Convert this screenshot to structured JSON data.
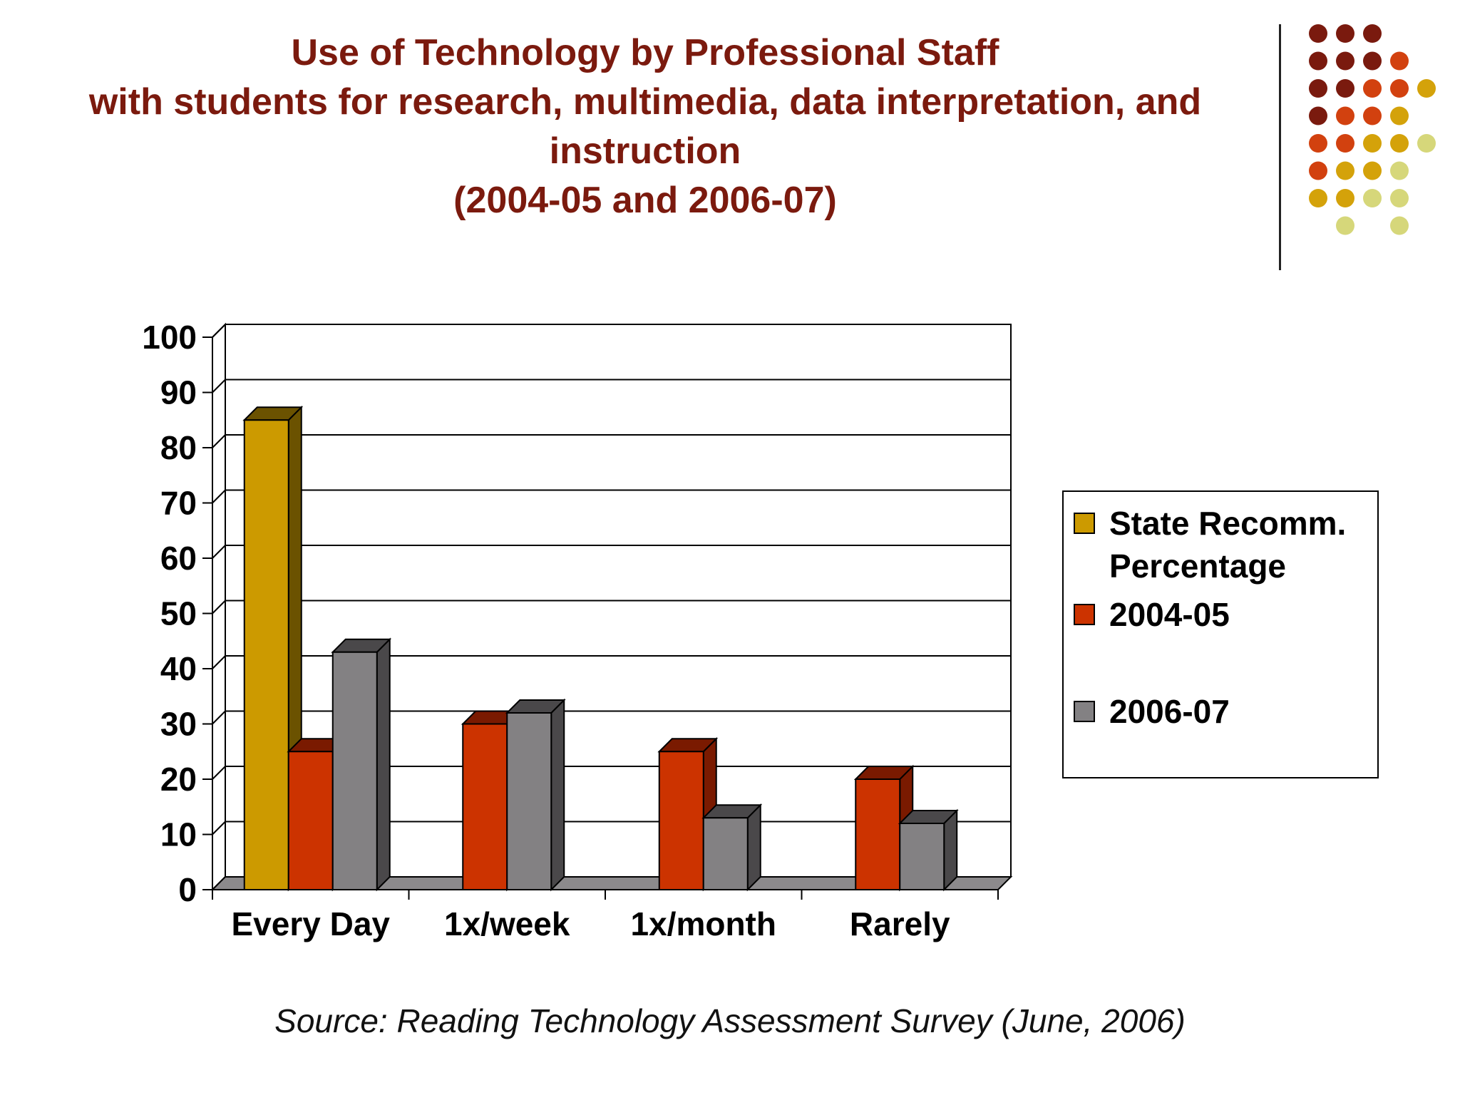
{
  "title_lines": [
    "Use of Technology by Professional Staff",
    "with students for research, multimedia, data interpretation, and",
    "instruction",
    "(2004-05 and 2006-07)"
  ],
  "source": "Source:  Reading Technology Assessment Survey (June, 2006)",
  "decoration_colors": [
    "#7a1a0e",
    "#d2410f",
    "#d4a20a",
    "#d6d77a"
  ],
  "chart_data": {
    "type": "bar",
    "categories": [
      "Every Day",
      "1x/week",
      "1x/month",
      "Rarely"
    ],
    "series": [
      {
        "name": "State Recomm. Percentage",
        "values": [
          85,
          null,
          null,
          null
        ],
        "color": "#cc9a00",
        "side_color": "#6b5200"
      },
      {
        "name": "2004-05",
        "values": [
          25,
          30,
          25,
          20
        ],
        "color": "#cc3300",
        "side_color": "#7a1a00"
      },
      {
        "name": "2006-07",
        "values": [
          43,
          32,
          13,
          12
        ],
        "color": "#838183",
        "side_color": "#4a484a"
      }
    ],
    "legend_lines": [
      [
        "State Recomm.",
        "Percentage"
      ],
      [
        "2004-05"
      ],
      [
        "2006-07"
      ]
    ],
    "ylim": [
      0,
      100
    ],
    "yticks": [
      0,
      10,
      20,
      30,
      40,
      50,
      60,
      70,
      80,
      90,
      100
    ],
    "ytick_labels": [
      "0",
      "10",
      "20",
      "30",
      "40",
      "50",
      "60",
      "70",
      "80",
      "90",
      "100"
    ],
    "xlabel": "",
    "ylabel": "",
    "grid": true,
    "legend_position": "right",
    "style": "3d-clustered-bar"
  }
}
